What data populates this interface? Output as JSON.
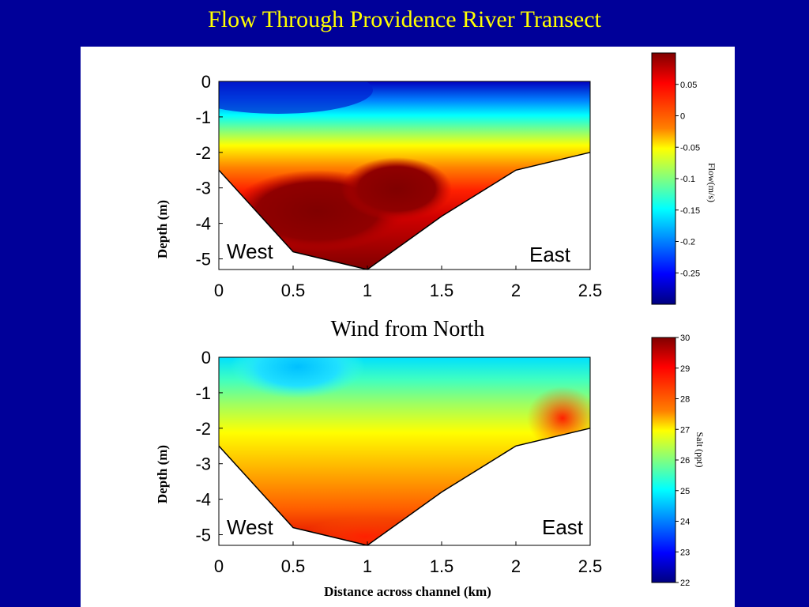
{
  "slide_title": "Flow Through Providence River Transect",
  "middle_caption": "Wind from North",
  "colors": {
    "background": "#000099",
    "title": "#ffff00"
  },
  "chart_data": [
    {
      "type": "heatmap",
      "ylabel": "Depth (m)",
      "xlabel": "",
      "xlim": [
        0,
        2.5
      ],
      "ylim": [
        -5.3,
        0
      ],
      "x_ticks": [
        "0",
        "0.5",
        "1",
        "1.5",
        "2",
        "2.5"
      ],
      "y_ticks": [
        "0",
        "-1",
        "-2",
        "-3",
        "-4",
        "-5"
      ],
      "annotations": [
        "West",
        "East"
      ],
      "colorbar": {
        "label": "Flow(m/s)",
        "ticks": [
          "0.05",
          "0",
          "-0.05",
          "-0.1",
          "-0.15",
          "-0.2",
          "-0.25"
        ],
        "range": [
          -0.3,
          0.1
        ]
      },
      "bottom_profile": [
        [
          0,
          -2.5
        ],
        [
          0.5,
          -4.8
        ],
        [
          0.95,
          -5.25
        ],
        [
          1.0,
          -5.3
        ],
        [
          1.5,
          -3.8
        ],
        [
          2.0,
          -2.5
        ],
        [
          2.5,
          -2.0
        ]
      ]
    },
    {
      "type": "heatmap",
      "ylabel": "Depth (m)",
      "xlabel": "Distance across channel (km)",
      "xlim": [
        0,
        2.5
      ],
      "ylim": [
        -5.3,
        0
      ],
      "x_ticks": [
        "0",
        "0.5",
        "1",
        "1.5",
        "2",
        "2.5"
      ],
      "y_ticks": [
        "0",
        "-1",
        "-2",
        "-3",
        "-4",
        "-5"
      ],
      "annotations": [
        "West",
        "East"
      ],
      "colorbar": {
        "label": "Salt (ppt)",
        "ticks": [
          "30",
          "29",
          "28",
          "27",
          "26",
          "25",
          "24",
          "23",
          "22"
        ],
        "range": [
          22,
          30
        ]
      },
      "bottom_profile": [
        [
          0,
          -2.5
        ],
        [
          0.5,
          -4.8
        ],
        [
          0.95,
          -5.25
        ],
        [
          1.0,
          -5.3
        ],
        [
          1.5,
          -3.8
        ],
        [
          2.0,
          -2.5
        ],
        [
          2.5,
          -2.0
        ]
      ]
    }
  ]
}
